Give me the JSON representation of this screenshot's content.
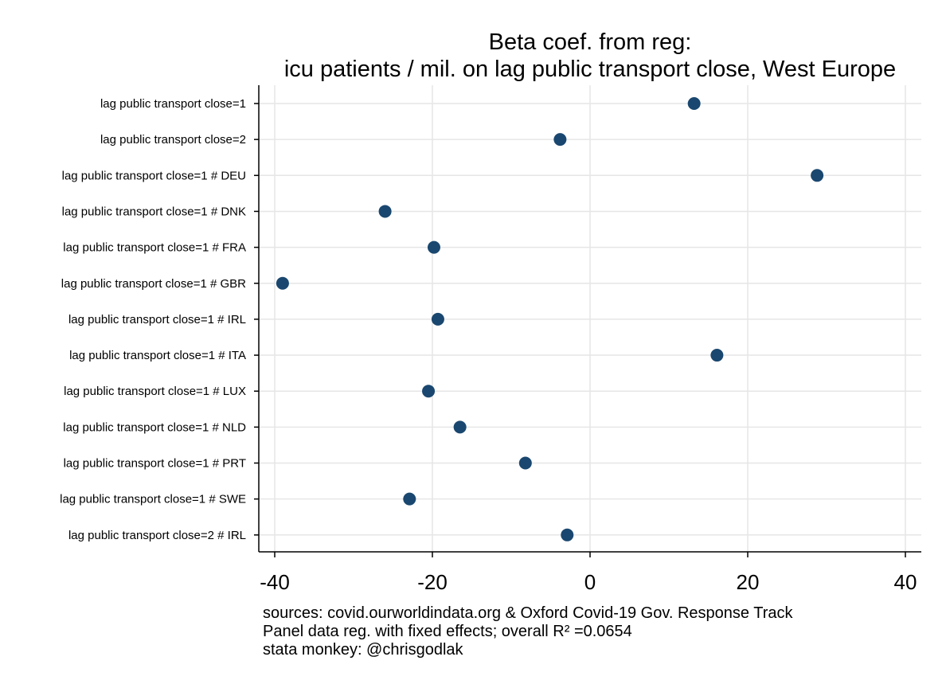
{
  "chart_data": {
    "type": "scatter",
    "title": "Beta coef. from reg:",
    "subtitle": "icu patients / mil. on lag public transport close, West Europe",
    "xlabel": "",
    "ylabel": "",
    "xlim": [
      -42,
      42
    ],
    "xticks": [
      -40,
      -20,
      0,
      20,
      40
    ],
    "grid": true,
    "marker_color": "#1a476f",
    "categories": [
      "lag public transport close=1",
      "lag public transport close=2",
      "lag public transport close=1 # DEU",
      "lag public transport close=1 # DNK",
      "lag public transport close=1 # FRA",
      "lag public transport close=1 # GBR",
      "lag public transport close=1 # IRL",
      "lag public transport close=1 # ITA",
      "lag public transport close=1 # LUX",
      "lag public transport close=1 # NLD",
      "lag public transport close=1 # PRT",
      "lag public transport close=1 # SWE",
      "lag public transport close=2 # IRL"
    ],
    "values": [
      13.2,
      -3.8,
      28.8,
      -26.0,
      -19.8,
      -39.0,
      -19.3,
      16.1,
      -20.5,
      -16.5,
      -8.2,
      -22.9,
      -2.9
    ],
    "notes": [
      "sources: covid.ourworldindata.org & Oxford Covid-19 Gov. Response Track",
      "Panel data reg. with fixed effects; overall R² =0.0654",
      "stata monkey: @chrisgodlak"
    ]
  }
}
